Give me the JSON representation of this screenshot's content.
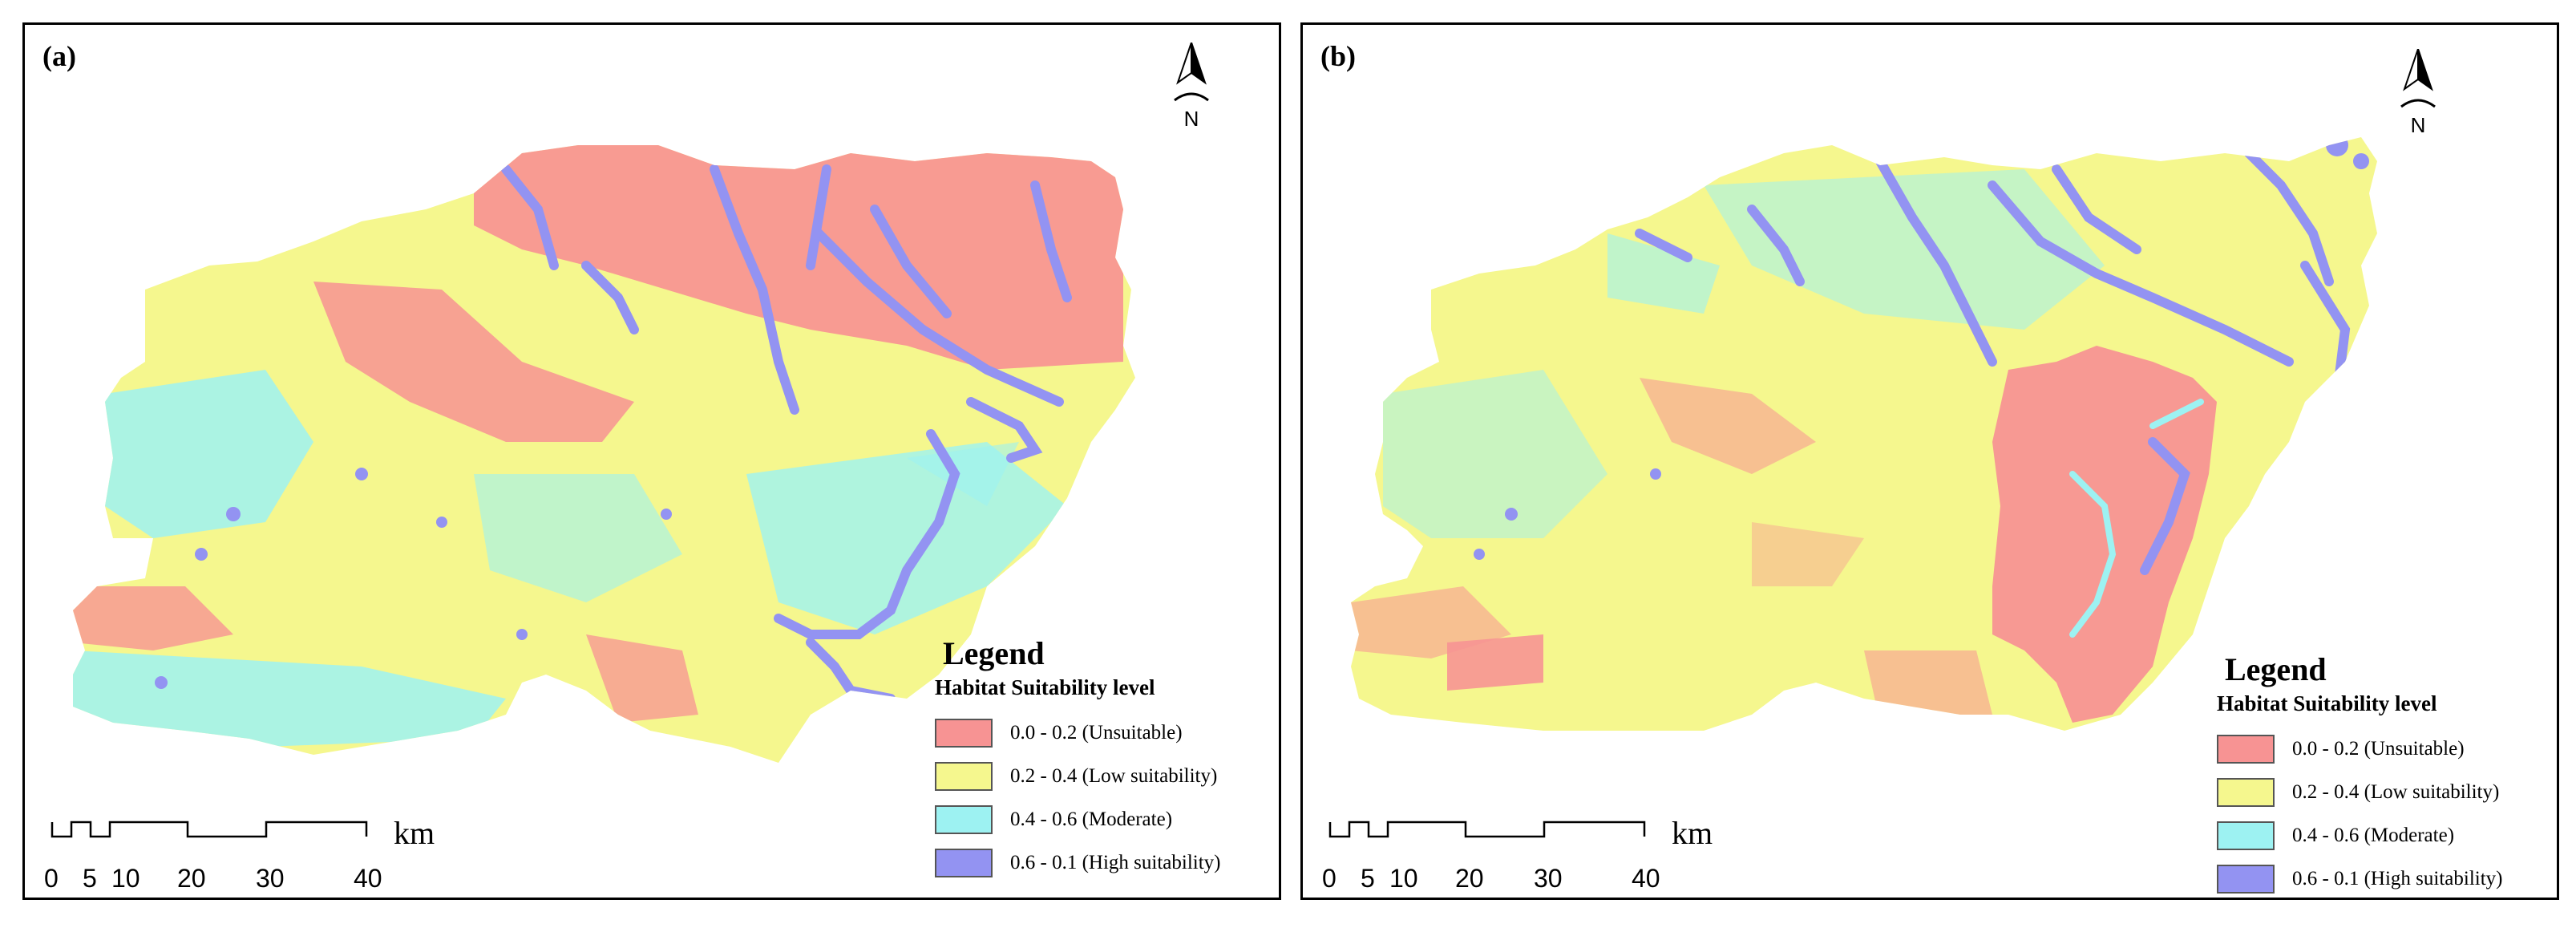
{
  "colors": {
    "unsuitable": "#f79393",
    "low": "#f5f78e",
    "moderate": "#9df2f2",
    "high": "#9393f2"
  },
  "panels": [
    {
      "label": "(a)",
      "north_label": "N",
      "legend": {
        "title": "Legend",
        "subtitle": "Habitat Suitability level",
        "items": [
          {
            "label": "0.0 - 0.2 (Unsuitable)",
            "color": "#f79393"
          },
          {
            "label": "0.2 - 0.4 (Low suitability)",
            "color": "#f5f78e"
          },
          {
            "label": "0.4 - 0.6 (Moderate)",
            "color": "#9df2f2"
          },
          {
            "label": "0.6 - 0.1 (High suitability)",
            "color": "#9393f2"
          }
        ]
      },
      "scale": {
        "unit": "km",
        "ticks": [
          "0",
          "5",
          "10",
          "20",
          "30",
          "40"
        ]
      }
    },
    {
      "label": "(b)",
      "north_label": "N",
      "legend": {
        "title": "Legend",
        "subtitle": "Habitat Suitability level",
        "items": [
          {
            "label": "0.0 - 0.2 (Unsuitable)",
            "color": "#f79393"
          },
          {
            "label": "0.2 - 0.4 (Low suitability)",
            "color": "#f5f78e"
          },
          {
            "label": "0.4 - 0.6 (Moderate)",
            "color": "#9df2f2"
          },
          {
            "label": "0.6 - 0.1 (High suitability)",
            "color": "#9393f2"
          }
        ]
      },
      "scale": {
        "unit": "km",
        "ticks": [
          "0",
          "5",
          "10",
          "20",
          "30",
          "40"
        ]
      }
    }
  ]
}
